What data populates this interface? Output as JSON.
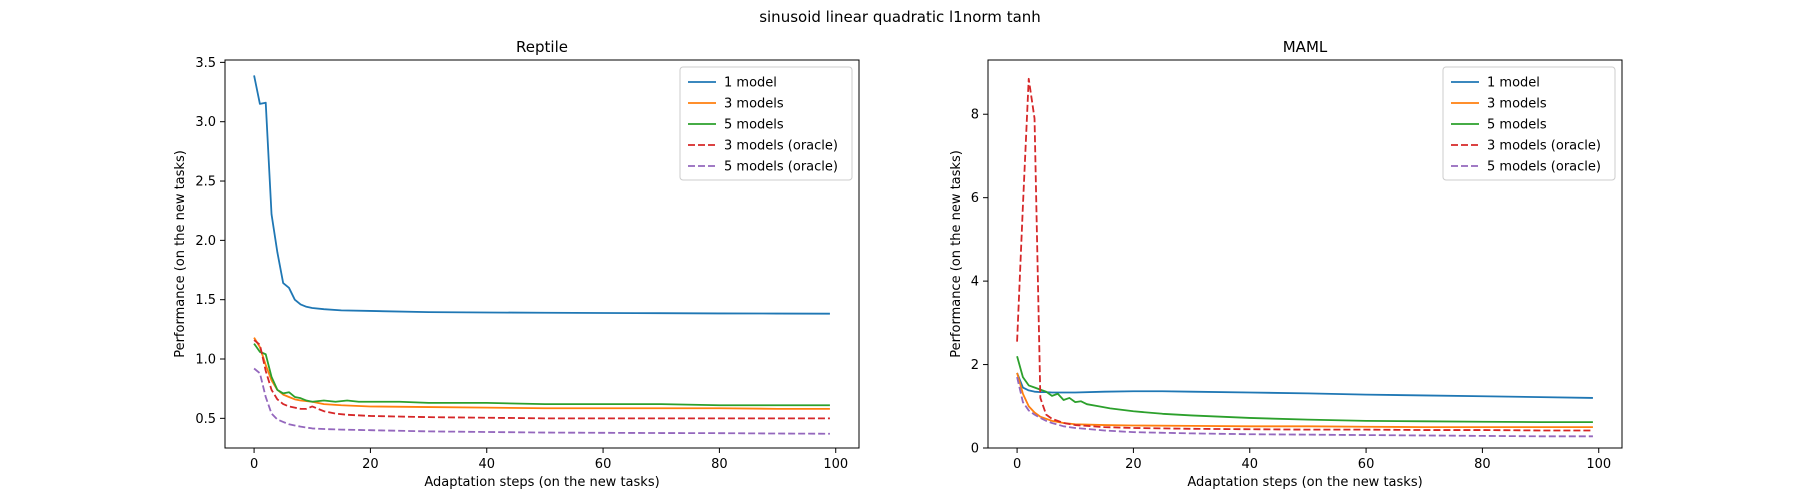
{
  "suptitle": "sinusoid linear quadratic l1norm tanh",
  "chart_data": [
    {
      "type": "line",
      "title": "Reptile",
      "xlabel": "Adaptation steps (on the new tasks)",
      "ylabel": "Performance (on the new tasks)",
      "xlim": [
        -5,
        104
      ],
      "ylim": [
        0.25,
        3.52
      ],
      "xticks": [
        0,
        20,
        40,
        60,
        80,
        100
      ],
      "yticks": [
        0.5,
        1.0,
        1.5,
        2.0,
        2.5,
        3.0,
        3.5
      ],
      "ytick_labels": [
        "0.5",
        "1.0",
        "1.5",
        "2.0",
        "2.5",
        "3.0",
        "3.5"
      ],
      "legend_position": "top-right",
      "series": [
        {
          "name": "1 model",
          "color": "#1f77b4",
          "dash": false,
          "x": [
            0,
            1,
            2,
            3,
            4,
            5,
            6,
            7,
            8,
            9,
            10,
            12,
            15,
            20,
            30,
            40,
            50,
            60,
            70,
            80,
            90,
            99
          ],
          "y": [
            3.39,
            3.15,
            3.16,
            2.22,
            1.9,
            1.64,
            1.6,
            1.5,
            1.46,
            1.44,
            1.43,
            1.42,
            1.41,
            1.405,
            1.395,
            1.392,
            1.39,
            1.388,
            1.386,
            1.384,
            1.383,
            1.382
          ]
        },
        {
          "name": "3 models",
          "color": "#ff7f0e",
          "dash": false,
          "x": [
            0,
            1,
            2,
            3,
            4,
            5,
            6,
            7,
            8,
            10,
            12,
            15,
            20,
            30,
            40,
            50,
            60,
            70,
            80,
            90,
            99
          ],
          "y": [
            1.18,
            1.1,
            0.95,
            0.82,
            0.74,
            0.7,
            0.68,
            0.66,
            0.65,
            0.64,
            0.62,
            0.61,
            0.6,
            0.595,
            0.59,
            0.585,
            0.585,
            0.585,
            0.585,
            0.58,
            0.58
          ]
        },
        {
          "name": "5 models",
          "color": "#2ca02c",
          "dash": false,
          "x": [
            0,
            1,
            2,
            3,
            4,
            5,
            6,
            7,
            8,
            9,
            10,
            12,
            14,
            16,
            18,
            20,
            25,
            30,
            40,
            50,
            60,
            70,
            80,
            90,
            99
          ],
          "y": [
            1.13,
            1.06,
            1.04,
            0.85,
            0.74,
            0.71,
            0.72,
            0.68,
            0.67,
            0.65,
            0.64,
            0.65,
            0.64,
            0.65,
            0.64,
            0.64,
            0.64,
            0.63,
            0.63,
            0.62,
            0.62,
            0.62,
            0.61,
            0.61,
            0.61
          ]
        },
        {
          "name": "3 models (oracle)",
          "color": "#d62728",
          "dash": true,
          "x": [
            0,
            1,
            2,
            3,
            4,
            5,
            6,
            7,
            8,
            9,
            10,
            11,
            12,
            14,
            16,
            20,
            30,
            40,
            50,
            60,
            70,
            80,
            90,
            99
          ],
          "y": [
            1.16,
            1.12,
            0.9,
            0.74,
            0.66,
            0.62,
            0.6,
            0.59,
            0.58,
            0.58,
            0.6,
            0.58,
            0.56,
            0.54,
            0.53,
            0.52,
            0.51,
            0.505,
            0.5,
            0.5,
            0.5,
            0.5,
            0.5,
            0.5
          ]
        },
        {
          "name": "5 models (oracle)",
          "color": "#9467bd",
          "dash": true,
          "x": [
            0,
            1,
            2,
            3,
            4,
            5,
            6,
            7,
            8,
            10,
            12,
            15,
            20,
            30,
            40,
            50,
            60,
            70,
            80,
            90,
            99
          ],
          "y": [
            0.92,
            0.88,
            0.68,
            0.54,
            0.49,
            0.47,
            0.45,
            0.44,
            0.43,
            0.415,
            0.41,
            0.405,
            0.4,
            0.39,
            0.385,
            0.38,
            0.378,
            0.376,
            0.375,
            0.372,
            0.37
          ]
        }
      ]
    },
    {
      "type": "line",
      "title": "MAML",
      "xlabel": "Adaptation steps (on the new tasks)",
      "ylabel": "Performance (on the new tasks)",
      "xlim": [
        -5,
        104
      ],
      "ylim": [
        0,
        9.3
      ],
      "xticks": [
        0,
        20,
        40,
        60,
        80,
        100
      ],
      "yticks": [
        0,
        2,
        4,
        6,
        8
      ],
      "ytick_labels": [
        "0",
        "2",
        "4",
        "6",
        "8"
      ],
      "legend_position": "top-right",
      "series": [
        {
          "name": "1 model",
          "color": "#1f77b4",
          "dash": false,
          "x": [
            0,
            1,
            2,
            3,
            4,
            5,
            6,
            8,
            10,
            15,
            20,
            25,
            30,
            40,
            50,
            60,
            70,
            80,
            90,
            99
          ],
          "y": [
            1.8,
            1.45,
            1.38,
            1.35,
            1.34,
            1.34,
            1.33,
            1.33,
            1.33,
            1.35,
            1.36,
            1.36,
            1.35,
            1.33,
            1.31,
            1.28,
            1.26,
            1.24,
            1.22,
            1.2
          ]
        },
        {
          "name": "3 models",
          "color": "#ff7f0e",
          "dash": false,
          "x": [
            0,
            1,
            2,
            3,
            4,
            5,
            6,
            8,
            10,
            15,
            20,
            30,
            40,
            50,
            60,
            70,
            80,
            90,
            99
          ],
          "y": [
            1.8,
            1.3,
            1.0,
            0.85,
            0.75,
            0.7,
            0.65,
            0.6,
            0.57,
            0.55,
            0.54,
            0.53,
            0.52,
            0.52,
            0.51,
            0.5,
            0.5,
            0.5,
            0.5
          ]
        },
        {
          "name": "5 models",
          "color": "#2ca02c",
          "dash": false,
          "x": [
            0,
            1,
            2,
            3,
            4,
            5,
            6,
            7,
            8,
            9,
            10,
            11,
            12,
            14,
            16,
            20,
            25,
            30,
            40,
            50,
            60,
            70,
            80,
            90,
            99
          ],
          "y": [
            2.2,
            1.7,
            1.5,
            1.45,
            1.4,
            1.35,
            1.25,
            1.3,
            1.15,
            1.2,
            1.1,
            1.12,
            1.05,
            1.0,
            0.95,
            0.88,
            0.82,
            0.78,
            0.72,
            0.68,
            0.65,
            0.64,
            0.63,
            0.62,
            0.62
          ]
        },
        {
          "name": "3 models (oracle)",
          "color": "#d62728",
          "dash": true,
          "x": [
            0,
            1,
            2,
            3,
            4,
            5,
            6,
            8,
            10,
            15,
            20,
            30,
            40,
            50,
            60,
            70,
            80,
            90,
            99
          ],
          "y": [
            2.55,
            5.8,
            8.85,
            7.9,
            1.2,
            0.8,
            0.7,
            0.6,
            0.55,
            0.5,
            0.48,
            0.46,
            0.45,
            0.44,
            0.44,
            0.43,
            0.43,
            0.42,
            0.42
          ]
        },
        {
          "name": "5 models (oracle)",
          "color": "#9467bd",
          "dash": true,
          "x": [
            0,
            1,
            2,
            3,
            4,
            5,
            6,
            8,
            10,
            15,
            20,
            30,
            40,
            50,
            60,
            70,
            80,
            90,
            99
          ],
          "y": [
            1.7,
            1.1,
            0.9,
            0.8,
            0.72,
            0.65,
            0.6,
            0.52,
            0.48,
            0.42,
            0.38,
            0.35,
            0.33,
            0.32,
            0.31,
            0.3,
            0.29,
            0.28,
            0.28
          ]
        }
      ]
    }
  ]
}
